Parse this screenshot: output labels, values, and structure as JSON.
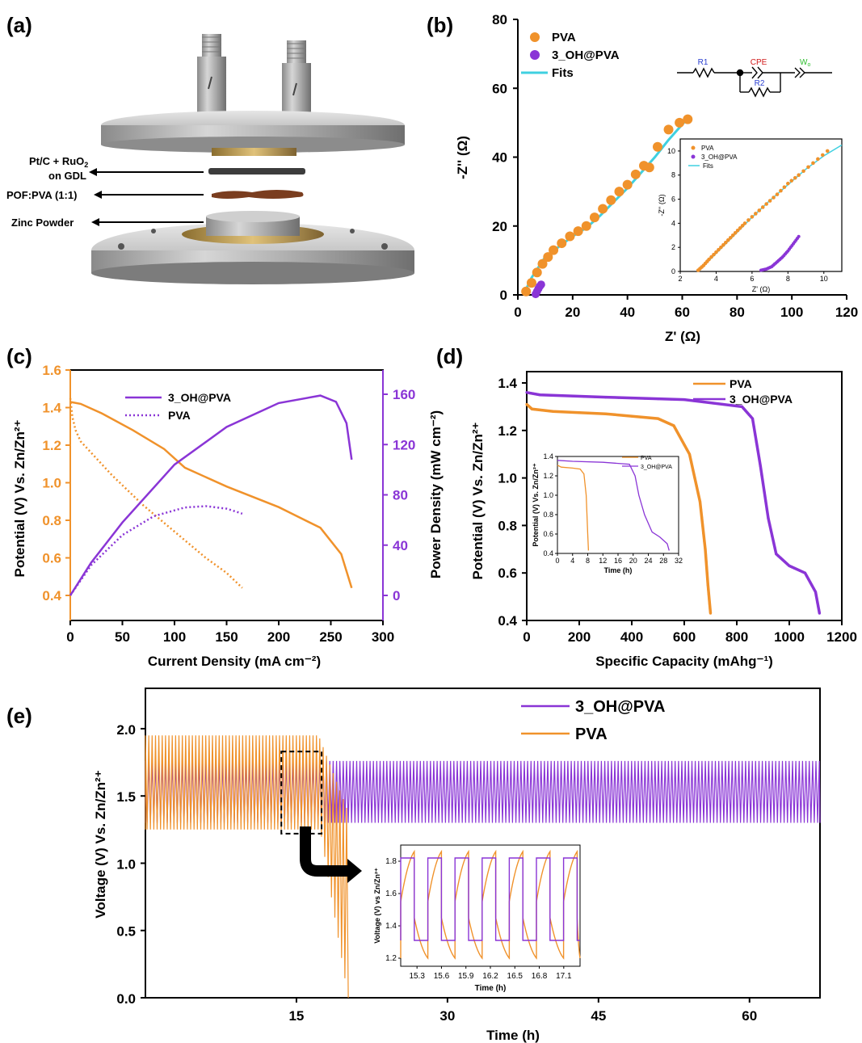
{
  "panel_labels": {
    "a": "(a)",
    "b": "(b)",
    "c": "(c)",
    "d": "(d)",
    "e": "(e)"
  },
  "panel_a": {
    "label_1_line1": "Pt/C + RuO",
    "label_1_sub": "2",
    "label_1_line2": "on GDL",
    "label_2": "POF:PVA (1:1)",
    "label_3": "Zinc Powder"
  },
  "panel_b": {
    "circuit": {
      "r1": "R1",
      "cpe": "CPE",
      "r2": "R2",
      "w": "W",
      "w_sub": "o"
    },
    "inset_legend": [
      "PVA",
      "3_OH@PVA",
      "Fits"
    ]
  },
  "panel_c": {
    "ylabel_right": "Power Density (mW cm⁻²)"
  },
  "panel_d": {
    "inset_ylabel": "Potential (V) Vs. Zn/Zn²⁺",
    "inset_xlabel": "Time (h)",
    "inset_legend": [
      "PVA",
      "3_OH@PVA"
    ]
  },
  "panel_e": {
    "inset_ylabel": "Voltage (V) vs Zn/Zn²⁺",
    "inset_xlabel": "Time (h)"
  },
  "colors": {
    "pva": "#f0922b",
    "oh": "#8a35d6",
    "fit": "#3fd0e0",
    "circuit_red": "#d11a1a",
    "circuit_blue": "#2a3fd0",
    "circuit_green": "#2fbf2f"
  },
  "chart_data": [
    {
      "id": "b",
      "type": "scatter",
      "xlabel": "Z' (Ω)",
      "ylabel": "-Z'' (Ω)",
      "xlim": [
        0,
        120
      ],
      "ylim": [
        0,
        80
      ],
      "xticks": [
        0,
        20,
        40,
        60,
        80,
        100,
        120
      ],
      "yticks": [
        0,
        20,
        40,
        60,
        80
      ],
      "legend": [
        "PVA",
        "3_OH@PVA",
        "Fits"
      ],
      "legend_position": "top-left",
      "series": [
        {
          "name": "PVA",
          "color": "#f0922b",
          "x": [
            3,
            5,
            7,
            9,
            11,
            13,
            16,
            19,
            22,
            25,
            28,
            31,
            34,
            37,
            40,
            43,
            46,
            48,
            51,
            55,
            59,
            62
          ],
          "y": [
            1,
            3.5,
            6.5,
            9,
            11,
            13,
            15,
            17,
            18.5,
            20,
            22.5,
            25,
            27.5,
            30,
            32,
            35,
            37.5,
            37,
            43,
            48,
            50,
            51
          ]
        },
        {
          "name": "3_OH@PVA",
          "color": "#8a35d6",
          "x": [
            6.5,
            7,
            7.5,
            8,
            8.5
          ],
          "y": [
            0.2,
            1,
            1.8,
            2.5,
            3
          ]
        },
        {
          "name": "Fits",
          "color": "#3fd0e0",
          "x": [
            2,
            5,
            10,
            15,
            20,
            25,
            30,
            35,
            40,
            45,
            50,
            55,
            60,
            63
          ],
          "y": [
            0,
            5,
            11,
            14,
            17,
            19.5,
            23,
            27,
            31,
            35.5,
            40,
            45,
            49.5,
            52
          ]
        }
      ],
      "inset": {
        "xlabel": "Z' (Ω)",
        "ylabel": "-Z'' (Ω)",
        "xlim": [
          2,
          11
        ],
        "ylim": [
          0,
          11
        ],
        "xticks": [
          2,
          4,
          6,
          8,
          10
        ],
        "yticks": [
          0,
          2,
          4,
          6,
          8,
          10
        ],
        "pva_x": [
          3,
          3.3,
          3.6,
          4,
          4.4,
          4.8,
          5.2,
          5.6,
          6.2,
          6.8,
          7.4,
          8,
          8.6,
          9.4,
          10.2
        ],
        "pva_y": [
          0.1,
          0.5,
          1,
          1.6,
          2.2,
          2.8,
          3.4,
          4,
          4.8,
          5.6,
          6.4,
          7.3,
          8,
          9,
          10
        ],
        "oh_x": [
          6.5,
          6.8,
          7.1,
          7.4,
          7.7,
          8,
          8.3,
          8.6
        ],
        "oh_y": [
          0.1,
          0.2,
          0.4,
          0.8,
          1.2,
          1.7,
          2.3,
          2.9
        ],
        "fit_x": [
          3,
          4,
          5,
          6,
          7,
          8,
          9,
          10,
          11
        ],
        "fit_y": [
          0,
          1.5,
          3,
          4.5,
          5.9,
          7.2,
          8.5,
          9.6,
          10.5
        ]
      }
    },
    {
      "id": "c",
      "type": "line",
      "xlabel": "Current Density (mA cm⁻²)",
      "ylabel": "Potential (V) Vs. Zn/Zn²⁺",
      "y2label": "Power Density (mW cm⁻²)",
      "xlim": [
        0,
        300
      ],
      "ylim": [
        0.4,
        1.6
      ],
      "y2lim": [
        -10,
        170
      ],
      "xticks": [
        0,
        50,
        100,
        150,
        200,
        250,
        300
      ],
      "yticks": [
        0.4,
        0.6,
        0.8,
        1.0,
        1.2,
        1.4,
        1.6
      ],
      "y2ticks": [
        0,
        40,
        80,
        120,
        160
      ],
      "legend": [
        "3_OH@PVA",
        "PVA"
      ],
      "legend_position": "top-center",
      "series": [
        {
          "name": "3_OH@PVA",
          "axis": "y",
          "color": "#f0922b",
          "style": "solid",
          "x": [
            0,
            10,
            30,
            60,
            90,
            110,
            150,
            200,
            240,
            260,
            270
          ],
          "y": [
            1.43,
            1.42,
            1.37,
            1.28,
            1.18,
            1.08,
            0.98,
            0.87,
            0.76,
            0.62,
            0.44
          ]
        },
        {
          "name": "PVA",
          "axis": "y",
          "color": "#f0922b",
          "style": "dotted",
          "x": [
            0,
            2,
            5,
            10,
            20,
            40,
            70,
            100,
            130,
            150,
            165
          ],
          "y": [
            1.45,
            1.35,
            1.28,
            1.22,
            1.16,
            1.04,
            0.88,
            0.74,
            0.6,
            0.52,
            0.44
          ]
        },
        {
          "name": "3_OH@PVA",
          "axis": "y2",
          "color": "#8a35d6",
          "style": "solid",
          "x": [
            0,
            20,
            50,
            100,
            150,
            200,
            240,
            255,
            265,
            270
          ],
          "y": [
            0,
            26,
            58,
            104,
            134,
            153,
            159,
            154,
            137,
            108
          ]
        },
        {
          "name": "PVA",
          "axis": "y2",
          "color": "#8a35d6",
          "style": "dotted",
          "x": [
            0,
            20,
            50,
            80,
            110,
            130,
            150,
            165
          ],
          "y": [
            0,
            24,
            48,
            63,
            70,
            71,
            69,
            65
          ]
        }
      ]
    },
    {
      "id": "d",
      "type": "line",
      "xlabel": "Specific Capacity (mAhg⁻¹)",
      "ylabel": "Potential (V) Vs. Zn/Zn²⁺",
      "xlim": [
        0,
        1200
      ],
      "ylim": [
        0.4,
        1.45
      ],
      "xticks": [
        0,
        200,
        400,
        600,
        800,
        1000,
        1200
      ],
      "yticks": [
        0.4,
        0.6,
        0.8,
        1.0,
        1.2,
        1.4
      ],
      "legend": [
        "PVA",
        "3_OH@PVA"
      ],
      "legend_position": "top-right",
      "series": [
        {
          "name": "PVA",
          "color": "#f0922b",
          "x": [
            0,
            20,
            100,
            300,
            500,
            560,
            620,
            660,
            680,
            690,
            700
          ],
          "y": [
            1.31,
            1.29,
            1.28,
            1.27,
            1.25,
            1.22,
            1.1,
            0.9,
            0.7,
            0.55,
            0.43
          ]
        },
        {
          "name": "3_OH@PVA",
          "color": "#8a35d6",
          "x": [
            0,
            50,
            300,
            600,
            820,
            860,
            890,
            920,
            950,
            1000,
            1060,
            1100,
            1115
          ],
          "y": [
            1.36,
            1.35,
            1.34,
            1.33,
            1.3,
            1.25,
            1.05,
            0.83,
            0.68,
            0.63,
            0.6,
            0.52,
            0.43
          ]
        }
      ],
      "inset": {
        "xlim": [
          0,
          32
        ],
        "ylim": [
          0.4,
          1.4
        ],
        "xticks": [
          0,
          4,
          8,
          12,
          16,
          20,
          24,
          28,
          32
        ],
        "yticks": [
          0.4,
          0.6,
          0.8,
          1.0,
          1.2,
          1.4
        ],
        "pva_x": [
          0,
          1,
          4,
          6,
          7,
          7.6,
          8,
          8.2
        ],
        "pva_y": [
          1.31,
          1.29,
          1.28,
          1.27,
          1.22,
          1.0,
          0.6,
          0.43
        ],
        "oh_x": [
          0,
          4,
          12,
          19,
          20.5,
          21.5,
          23,
          25,
          27,
          29,
          29.5
        ],
        "oh_y": [
          1.36,
          1.35,
          1.34,
          1.32,
          1.2,
          1.0,
          0.8,
          0.62,
          0.57,
          0.5,
          0.43
        ]
      }
    },
    {
      "id": "e",
      "type": "line",
      "xlabel": "Time (h)",
      "ylabel": "Voltage (V) Vs. Zn/Zn²⁺",
      "xlim": [
        0,
        67
      ],
      "ylim": [
        0,
        2.3
      ],
      "xticks": [
        15,
        30,
        45,
        60
      ],
      "yticks": [
        0.0,
        0.5,
        1.0,
        1.5,
        2.0
      ],
      "legend": [
        "3_OH@PVA",
        "PVA"
      ],
      "legend_position": "top-right",
      "series": [
        {
          "name": "3_OH@PVA",
          "color": "#8a35d6",
          "t_end": 67,
          "period": 0.333,
          "v_high": 1.76,
          "v_low": 1.3
        },
        {
          "name": "PVA",
          "color": "#f0922b",
          "t_end": 20.3,
          "period": 0.333,
          "v_high": 1.95,
          "v_low": 1.25,
          "failure_start": 17.2,
          "failure_min": 0.0
        }
      ],
      "zoom_box": {
        "x": [
          13.5,
          17.5
        ],
        "y": [
          1.22,
          1.83
        ]
      },
      "inset": {
        "xlim": [
          15.1,
          17.3
        ],
        "ylim": [
          1.15,
          1.9
        ],
        "xticks": [
          15.3,
          15.6,
          15.9,
          16.2,
          16.5,
          16.8,
          17.1
        ],
        "yticks": [
          1.2,
          1.4,
          1.6,
          1.8
        ],
        "period": 0.333,
        "start": 15.1,
        "oh_high": 1.82,
        "oh_low": 1.31,
        "pva_high": 1.86,
        "pva_low": 1.2
      }
    }
  ]
}
